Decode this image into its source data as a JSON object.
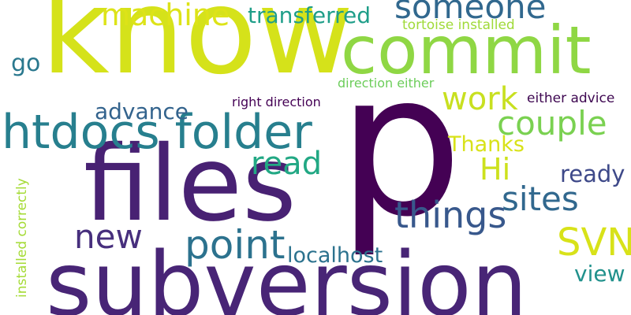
{
  "words": {
    "p": {
      "text": "p",
      "color": "#440154"
    },
    "know": {
      "text": "know",
      "color": "#d5e21a"
    },
    "files": {
      "text": "files",
      "color": "#482173"
    },
    "subversion": {
      "text": "subversion",
      "color": "#482576"
    },
    "commit": {
      "text": "commit",
      "color": "#8fd744"
    },
    "htdocs_folder": {
      "text": "htdocs folder",
      "color": "#277f8e"
    },
    "someone": {
      "text": "someone",
      "color": "#31688e"
    },
    "machine": {
      "text": "machine",
      "color": "#dde318"
    },
    "transferred": {
      "text": "transferred",
      "color": "#1f9e89"
    },
    "tortoise_installed": {
      "text": "tortoise installed",
      "color": "#a0da39"
    },
    "go": {
      "text": "go",
      "color": "#2a788e"
    },
    "direction_either": {
      "text": "direction either",
      "color": "#6ccd5a"
    },
    "work": {
      "text": "work",
      "color": "#c8e020"
    },
    "right_direction": {
      "text": "right direction",
      "color": "#440154"
    },
    "either_advice": {
      "text": "either advice",
      "color": "#3e0751"
    },
    "advance": {
      "text": "advance",
      "color": "#33638d"
    },
    "couple": {
      "text": "couple",
      "color": "#7ad151"
    },
    "thanks": {
      "text": "Thanks",
      "color": "#d8e219"
    },
    "read": {
      "text": "read",
      "color": "#22a884"
    },
    "hi": {
      "text": "Hi",
      "color": "#cde11d"
    },
    "ready": {
      "text": "ready",
      "color": "#3e4989"
    },
    "sites": {
      "text": "sites",
      "color": "#31688e"
    },
    "things": {
      "text": "things",
      "color": "#38588c"
    },
    "new": {
      "text": "new",
      "color": "#472f7d"
    },
    "point": {
      "text": "point",
      "color": "#2c728e"
    },
    "svn": {
      "text": "SVN",
      "color": "#d8e219"
    },
    "localhost": {
      "text": "localhost",
      "color": "#2c728e"
    },
    "view": {
      "text": "view",
      "color": "#21918c"
    },
    "installed_correctly": {
      "text": "installed correctly",
      "color": "#a5db36"
    }
  }
}
